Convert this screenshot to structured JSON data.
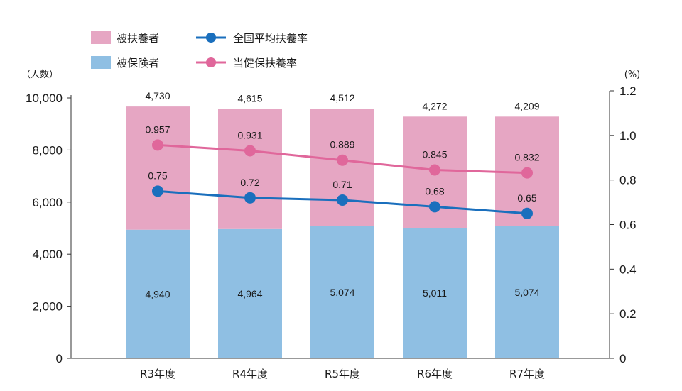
{
  "chart_data": {
    "type": "bar",
    "stacked": true,
    "categories": [
      "R3年度",
      "R4年度",
      "R5年度",
      "R6年度",
      "R7年度"
    ],
    "left_axis": {
      "unit": "（人数）",
      "range": [
        0,
        10000
      ],
      "ticks": [
        "0",
        "2,000",
        "4,000",
        "6,000",
        "8,000",
        "10,000"
      ]
    },
    "right_axis": {
      "unit": "(%)",
      "range": [
        0,
        1.2
      ],
      "ticks": [
        "0",
        "0.2",
        "0.4",
        "0.6",
        "0.8",
        "1.0",
        "1.2"
      ]
    },
    "bar_series": [
      {
        "name": "被保険者",
        "color": "#8fbfe3",
        "values": [
          4940,
          4964,
          5074,
          5011,
          5074
        ],
        "labels": [
          "4,940",
          "4,964",
          "5,074",
          "5,011",
          "5,074"
        ]
      },
      {
        "name": "被扶養者",
        "color": "#e6a6c3",
        "values": [
          4730,
          4615,
          4512,
          4272,
          4209
        ],
        "labels": [
          "4,730",
          "4,615",
          "4,512",
          "4,272",
          "4,209"
        ]
      }
    ],
    "line_series": [
      {
        "name": "全国平均扶養率",
        "color": "#1a6fbd",
        "values": [
          0.75,
          0.72,
          0.71,
          0.68,
          0.65
        ],
        "labels": [
          "0.75",
          "0.72",
          "0.71",
          "0.68",
          "0.65"
        ]
      },
      {
        "name": "当健保扶養率",
        "color": "#e0679b",
        "values": [
          0.957,
          0.931,
          0.889,
          0.845,
          0.832
        ],
        "labels": [
          "0.957",
          "0.931",
          "0.889",
          "0.845",
          "0.832"
        ]
      }
    ],
    "legend_position": "top-left",
    "grid": false
  }
}
